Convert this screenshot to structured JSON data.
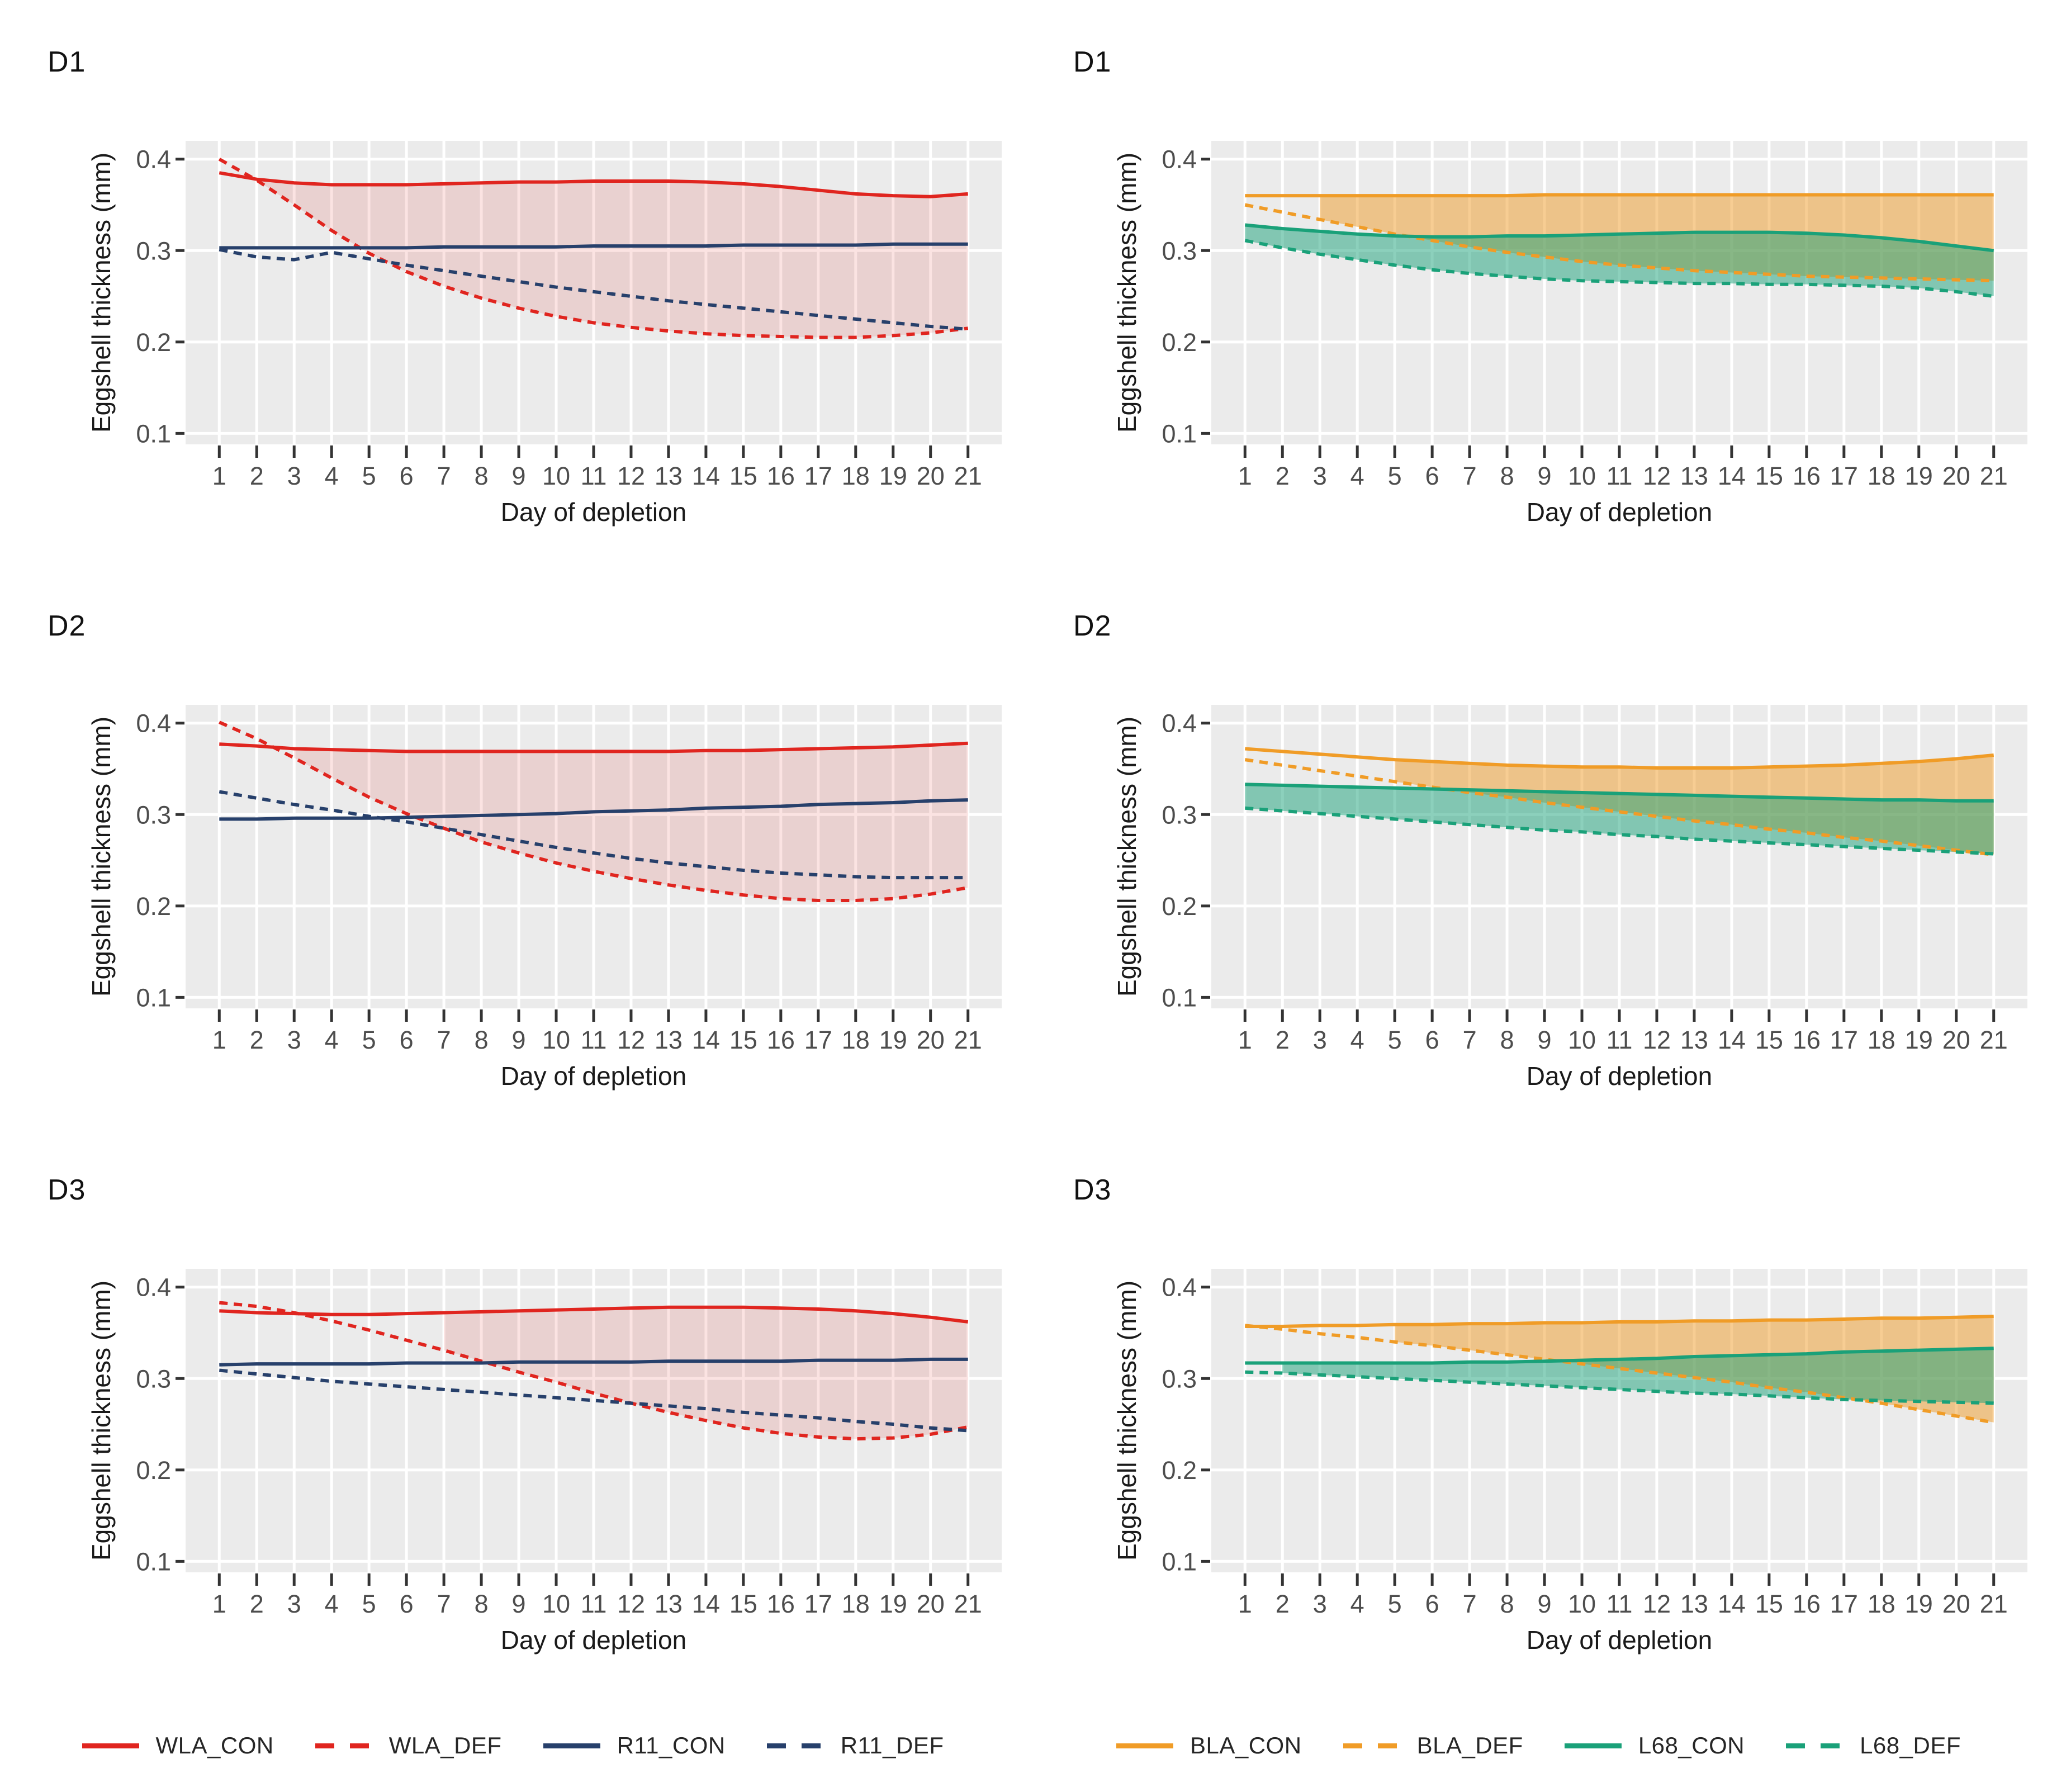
{
  "palette": {
    "wla": "#E0251F",
    "r11": "#27406B",
    "bla": "#F09C27",
    "l68": "#1AA179",
    "panel_bg": "#EBEBEB",
    "grid": "#FFFFFF",
    "tick_mark": "#333333",
    "tick_label": "#4D4D4D",
    "axis_title": "#1A1A1A"
  },
  "chart_data": {
    "type": "line",
    "axis": {
      "xlabel": "Day of depletion",
      "ylabel": "Eggshell thickness (mm)",
      "xticks": [
        1,
        2,
        3,
        4,
        5,
        6,
        7,
        8,
        9,
        10,
        11,
        12,
        13,
        14,
        15,
        16,
        17,
        18,
        19,
        20,
        21
      ],
      "yticks": [
        0.1,
        0.2,
        0.3,
        0.4
      ],
      "ytick_labels": [
        "0.1",
        "0.2",
        "0.3",
        "0.4"
      ],
      "xlim": [
        0.1,
        21.9
      ],
      "ylim": [
        0.088,
        0.42
      ],
      "grid": "major-only",
      "panel_background": "gray"
    },
    "panels": [
      {
        "title": "D1",
        "side": "left",
        "series": [
          {
            "name": "WLA_CON",
            "color": "wla",
            "dash": false,
            "values": [
              0.385,
              0.378,
              0.374,
              0.372,
              0.372,
              0.372,
              0.373,
              0.374,
              0.375,
              0.375,
              0.376,
              0.376,
              0.376,
              0.375,
              0.373,
              0.37,
              0.366,
              0.362,
              0.36,
              0.359,
              0.362
            ]
          },
          {
            "name": "WLA_DEF",
            "color": "wla",
            "dash": true,
            "values": [
              0.4,
              0.377,
              0.35,
              0.322,
              0.297,
              0.277,
              0.261,
              0.248,
              0.237,
              0.228,
              0.221,
              0.216,
              0.212,
              0.209,
              0.207,
              0.206,
              0.205,
              0.205,
              0.207,
              0.21,
              0.215
            ]
          },
          {
            "name": "R11_CON",
            "color": "r11",
            "dash": false,
            "values": [
              0.303,
              0.303,
              0.303,
              0.303,
              0.303,
              0.303,
              0.304,
              0.304,
              0.304,
              0.304,
              0.305,
              0.305,
              0.305,
              0.305,
              0.306,
              0.306,
              0.306,
              0.306,
              0.307,
              0.307,
              0.307
            ]
          },
          {
            "name": "R11_DEF",
            "color": "r11",
            "dash": true,
            "values": [
              0.301,
              0.293,
              0.29,
              0.298,
              0.291,
              0.284,
              0.278,
              0.272,
              0.266,
              0.26,
              0.255,
              0.25,
              0.245,
              0.241,
              0.237,
              0.233,
              0.229,
              0.225,
              0.221,
              0.217,
              0.214
            ]
          }
        ],
        "ribbons": [
          {
            "name": "wla",
            "top": 0,
            "bottom": 1,
            "color": "wla",
            "alpha": 0.13,
            "from": 2
          }
        ]
      },
      {
        "title": "D1",
        "side": "right",
        "series": [
          {
            "name": "BLA_CON",
            "color": "bla",
            "dash": false,
            "values": [
              0.36,
              0.36,
              0.36,
              0.36,
              0.36,
              0.36,
              0.36,
              0.36,
              0.361,
              0.361,
              0.361,
              0.361,
              0.361,
              0.361,
              0.361,
              0.361,
              0.361,
              0.361,
              0.361,
              0.361,
              0.361
            ]
          },
          {
            "name": "BLA_DEF",
            "color": "bla",
            "dash": true,
            "values": [
              0.35,
              0.342,
              0.334,
              0.326,
              0.318,
              0.311,
              0.304,
              0.298,
              0.293,
              0.288,
              0.284,
              0.281,
              0.278,
              0.276,
              0.274,
              0.272,
              0.271,
              0.27,
              0.269,
              0.268,
              0.267
            ]
          },
          {
            "name": "L68_CON",
            "color": "l68",
            "dash": false,
            "values": [
              0.328,
              0.324,
              0.321,
              0.318,
              0.316,
              0.315,
              0.315,
              0.316,
              0.316,
              0.317,
              0.318,
              0.319,
              0.32,
              0.32,
              0.32,
              0.319,
              0.317,
              0.314,
              0.31,
              0.305,
              0.3
            ]
          },
          {
            "name": "L68_DEF",
            "color": "l68",
            "dash": true,
            "values": [
              0.311,
              0.303,
              0.296,
              0.29,
              0.284,
              0.279,
              0.275,
              0.272,
              0.269,
              0.267,
              0.266,
              0.265,
              0.264,
              0.264,
              0.263,
              0.263,
              0.262,
              0.261,
              0.259,
              0.255,
              0.25
            ]
          }
        ],
        "ribbons": [
          {
            "name": "bla",
            "top": 0,
            "bottom": 1,
            "color": "bla",
            "alpha": 0.5,
            "from": 3
          },
          {
            "name": "l68",
            "top": 2,
            "bottom": 3,
            "color": "l68",
            "alpha": 0.5,
            "from": 1
          }
        ]
      },
      {
        "title": "D2",
        "side": "left",
        "series": [
          {
            "name": "WLA_CON",
            "color": "wla",
            "dash": false,
            "values": [
              0.377,
              0.375,
              0.372,
              0.371,
              0.37,
              0.369,
              0.369,
              0.369,
              0.369,
              0.369,
              0.369,
              0.369,
              0.369,
              0.37,
              0.37,
              0.371,
              0.372,
              0.373,
              0.374,
              0.376,
              0.378
            ]
          },
          {
            "name": "WLA_DEF",
            "color": "wla",
            "dash": true,
            "values": [
              0.401,
              0.383,
              0.362,
              0.34,
              0.319,
              0.301,
              0.285,
              0.27,
              0.258,
              0.247,
              0.238,
              0.23,
              0.223,
              0.217,
              0.212,
              0.208,
              0.206,
              0.206,
              0.208,
              0.213,
              0.22
            ]
          },
          {
            "name": "R11_CON",
            "color": "r11",
            "dash": false,
            "values": [
              0.295,
              0.295,
              0.296,
              0.296,
              0.296,
              0.297,
              0.298,
              0.299,
              0.3,
              0.301,
              0.303,
              0.304,
              0.305,
              0.307,
              0.308,
              0.309,
              0.311,
              0.312,
              0.313,
              0.315,
              0.316
            ]
          },
          {
            "name": "R11_DEF",
            "color": "r11",
            "dash": true,
            "values": [
              0.325,
              0.318,
              0.311,
              0.305,
              0.298,
              0.292,
              0.285,
              0.278,
              0.271,
              0.264,
              0.258,
              0.252,
              0.247,
              0.243,
              0.239,
              0.236,
              0.234,
              0.232,
              0.231,
              0.231,
              0.231
            ]
          }
        ],
        "ribbons": [
          {
            "name": "wla",
            "top": 0,
            "bottom": 1,
            "color": "wla",
            "alpha": 0.13,
            "from": 3
          }
        ]
      },
      {
        "title": "D2",
        "side": "right",
        "series": [
          {
            "name": "BLA_CON",
            "color": "bla",
            "dash": false,
            "values": [
              0.372,
              0.369,
              0.366,
              0.363,
              0.36,
              0.358,
              0.356,
              0.354,
              0.353,
              0.352,
              0.352,
              0.351,
              0.351,
              0.351,
              0.352,
              0.353,
              0.354,
              0.356,
              0.358,
              0.361,
              0.365
            ]
          },
          {
            "name": "BLA_DEF",
            "color": "bla",
            "dash": true,
            "values": [
              0.36,
              0.354,
              0.348,
              0.342,
              0.336,
              0.33,
              0.324,
              0.319,
              0.313,
              0.308,
              0.303,
              0.298,
              0.293,
              0.289,
              0.284,
              0.28,
              0.275,
              0.271,
              0.266,
              0.261,
              0.256
            ]
          },
          {
            "name": "L68_CON",
            "color": "l68",
            "dash": false,
            "values": [
              0.333,
              0.332,
              0.331,
              0.33,
              0.329,
              0.328,
              0.327,
              0.326,
              0.325,
              0.324,
              0.323,
              0.322,
              0.321,
              0.32,
              0.319,
              0.318,
              0.317,
              0.316,
              0.316,
              0.315,
              0.315
            ]
          },
          {
            "name": "L68_DEF",
            "color": "l68",
            "dash": true,
            "values": [
              0.307,
              0.304,
              0.301,
              0.298,
              0.295,
              0.292,
              0.289,
              0.286,
              0.283,
              0.281,
              0.278,
              0.276,
              0.273,
              0.271,
              0.269,
              0.267,
              0.265,
              0.263,
              0.261,
              0.259,
              0.257
            ]
          }
        ],
        "ribbons": [
          {
            "name": "bla",
            "top": 0,
            "bottom": 1,
            "color": "bla",
            "alpha": 0.5,
            "from": 5
          },
          {
            "name": "l68",
            "top": 2,
            "bottom": 3,
            "color": "l68",
            "alpha": 0.5,
            "from": 1
          }
        ]
      },
      {
        "title": "D3",
        "side": "left",
        "series": [
          {
            "name": "WLA_CON",
            "color": "wla",
            "dash": false,
            "values": [
              0.374,
              0.372,
              0.371,
              0.37,
              0.37,
              0.371,
              0.372,
              0.373,
              0.374,
              0.375,
              0.376,
              0.377,
              0.378,
              0.378,
              0.378,
              0.377,
              0.376,
              0.374,
              0.371,
              0.367,
              0.362
            ]
          },
          {
            "name": "WLA_DEF",
            "color": "wla",
            "dash": true,
            "values": [
              0.383,
              0.379,
              0.372,
              0.363,
              0.353,
              0.342,
              0.331,
              0.319,
              0.307,
              0.296,
              0.284,
              0.273,
              0.263,
              0.254,
              0.246,
              0.24,
              0.236,
              0.234,
              0.235,
              0.239,
              0.247
            ]
          },
          {
            "name": "R11_CON",
            "color": "r11",
            "dash": false,
            "values": [
              0.315,
              0.316,
              0.316,
              0.316,
              0.316,
              0.317,
              0.317,
              0.317,
              0.318,
              0.318,
              0.318,
              0.318,
              0.319,
              0.319,
              0.319,
              0.319,
              0.32,
              0.32,
              0.32,
              0.321,
              0.321
            ]
          },
          {
            "name": "R11_DEF",
            "color": "r11",
            "dash": true,
            "values": [
              0.309,
              0.305,
              0.301,
              0.297,
              0.294,
              0.291,
              0.288,
              0.285,
              0.282,
              0.279,
              0.276,
              0.273,
              0.27,
              0.267,
              0.263,
              0.26,
              0.257,
              0.253,
              0.25,
              0.246,
              0.243
            ]
          }
        ],
        "ribbons": [
          {
            "name": "wla",
            "top": 0,
            "bottom": 1,
            "color": "wla",
            "alpha": 0.13,
            "from": 7
          }
        ]
      },
      {
        "title": "D3",
        "side": "right",
        "series": [
          {
            "name": "BLA_CON",
            "color": "bla",
            "dash": false,
            "values": [
              0.357,
              0.357,
              0.358,
              0.358,
              0.359,
              0.359,
              0.36,
              0.36,
              0.361,
              0.361,
              0.362,
              0.362,
              0.363,
              0.363,
              0.364,
              0.364,
              0.365,
              0.366,
              0.366,
              0.367,
              0.368
            ]
          },
          {
            "name": "BLA_DEF",
            "color": "bla",
            "dash": true,
            "values": [
              0.358,
              0.354,
              0.349,
              0.345,
              0.34,
              0.336,
              0.331,
              0.326,
              0.321,
              0.316,
              0.311,
              0.306,
              0.301,
              0.296,
              0.29,
              0.285,
              0.279,
              0.273,
              0.266,
              0.259,
              0.252
            ]
          },
          {
            "name": "L68_CON",
            "color": "l68",
            "dash": false,
            "values": [
              0.317,
              0.317,
              0.317,
              0.317,
              0.317,
              0.317,
              0.318,
              0.318,
              0.319,
              0.32,
              0.321,
              0.322,
              0.324,
              0.325,
              0.326,
              0.327,
              0.329,
              0.33,
              0.331,
              0.332,
              0.333
            ]
          },
          {
            "name": "L68_DEF",
            "color": "l68",
            "dash": true,
            "values": [
              0.307,
              0.306,
              0.304,
              0.302,
              0.3,
              0.298,
              0.296,
              0.294,
              0.292,
              0.29,
              0.288,
              0.286,
              0.284,
              0.283,
              0.281,
              0.279,
              0.277,
              0.276,
              0.275,
              0.274,
              0.273
            ]
          }
        ],
        "ribbons": [
          {
            "name": "bla",
            "top": 0,
            "bottom": 1,
            "color": "bla",
            "alpha": 0.5,
            "from": 5
          },
          {
            "name": "l68",
            "top": 2,
            "bottom": 3,
            "color": "l68",
            "alpha": 0.5,
            "from": 2
          }
        ]
      }
    ]
  },
  "legends": {
    "left": {
      "items": [
        {
          "label": "WLA_CON",
          "color": "wla",
          "dash": false
        },
        {
          "label": "WLA_DEF",
          "color": "wla",
          "dash": true
        },
        {
          "label": "R11_CON",
          "color": "r11",
          "dash": false
        },
        {
          "label": "R11_DEF",
          "color": "r11",
          "dash": true
        }
      ]
    },
    "right": {
      "items": [
        {
          "label": "BLA_CON",
          "color": "bla",
          "dash": false
        },
        {
          "label": "BLA_DEF",
          "color": "bla",
          "dash": true
        },
        {
          "label": "L68_CON",
          "color": "l68",
          "dash": false
        },
        {
          "label": "L68_DEF",
          "color": "l68",
          "dash": true
        }
      ]
    }
  }
}
